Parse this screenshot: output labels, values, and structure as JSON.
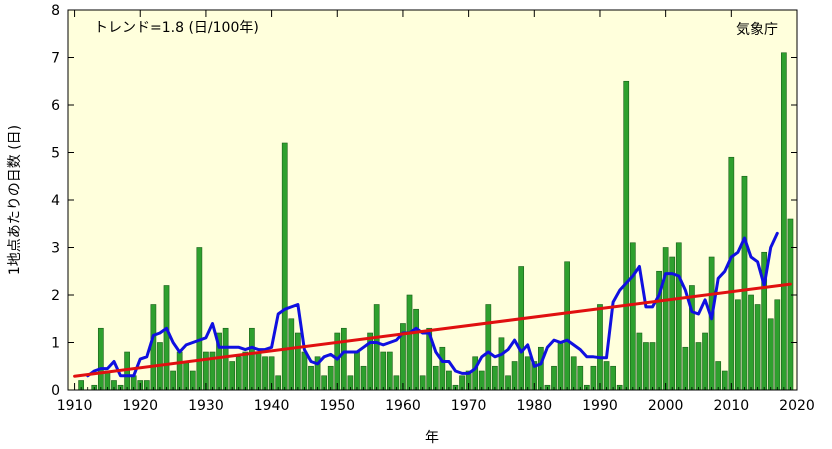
{
  "chart_data": {
    "type": "bar",
    "annotation_trend": "トレンド=1.8 (日/100年)",
    "annotation_source": "気象庁",
    "xlabel": "年",
    "ylabel": "1地点あたりの日数 (日)",
    "xlim": [
      1909,
      2020
    ],
    "ylim": [
      0,
      8
    ],
    "x_ticks": [
      "1910",
      "1920",
      "1930",
      "1940",
      "1950",
      "1960",
      "1970",
      "1980",
      "1990",
      "2000",
      "2010",
      "2020"
    ],
    "y_ticks": [
      "0",
      "1",
      "2",
      "3",
      "4",
      "5",
      "6",
      "7",
      "8"
    ],
    "grid": false,
    "colors": {
      "bar": "#2ea02e",
      "bar_edge": "#1a5e1a",
      "moving_average": "#1010e0",
      "trend": "#e01010",
      "background": "#ffffdc"
    },
    "series": [
      {
        "kind": "bar",
        "x": [
          1910,
          1911,
          1912,
          1913,
          1914,
          1915,
          1916,
          1917,
          1918,
          1919,
          1920,
          1921,
          1922,
          1923,
          1924,
          1925,
          1926,
          1927,
          1928,
          1929,
          1930,
          1931,
          1932,
          1933,
          1934,
          1935,
          1936,
          1937,
          1938,
          1939,
          1940,
          1941,
          1942,
          1943,
          1944,
          1945,
          1946,
          1947,
          1948,
          1949,
          1950,
          1951,
          1952,
          1953,
          1954,
          1955,
          1956,
          1957,
          1958,
          1959,
          1960,
          1961,
          1962,
          1963,
          1964,
          1965,
          1966,
          1967,
          1968,
          1969,
          1970,
          1971,
          1972,
          1973,
          1974,
          1975,
          1976,
          1977,
          1978,
          1979,
          1980,
          1981,
          1982,
          1983,
          1984,
          1985,
          1986,
          1987,
          1988,
          1989,
          1990,
          1991,
          1992,
          1993,
          1994,
          1995,
          1996,
          1997,
          1998,
          1999,
          2000,
          2001,
          2002,
          2003,
          2004,
          2005,
          2006,
          2007,
          2008,
          2009,
          2010,
          2011,
          2012,
          2013,
          2014,
          2015,
          2016,
          2017,
          2018,
          2019
        ],
        "values": [
          0.0,
          0.2,
          0.0,
          0.1,
          1.3,
          0.4,
          0.2,
          0.1,
          0.8,
          0.3,
          0.2,
          0.2,
          1.8,
          1.0,
          2.2,
          0.4,
          0.8,
          0.6,
          0.4,
          3.0,
          0.8,
          0.8,
          1.2,
          1.3,
          0.6,
          0.7,
          0.8,
          1.3,
          0.8,
          0.7,
          0.7,
          0.3,
          5.2,
          1.5,
          1.2,
          0.8,
          0.5,
          0.7,
          0.3,
          0.5,
          1.2,
          1.3,
          0.3,
          0.8,
          0.5,
          1.2,
          1.8,
          0.8,
          0.8,
          0.3,
          1.4,
          2.0,
          1.7,
          0.3,
          1.3,
          0.5,
          0.9,
          0.4,
          0.1,
          0.3,
          0.4,
          0.7,
          0.4,
          1.8,
          0.5,
          1.1,
          0.3,
          0.6,
          2.6,
          0.7,
          0.6,
          0.9,
          0.1,
          0.5,
          1.0,
          2.7,
          0.7,
          0.5,
          0.1,
          0.5,
          1.8,
          0.6,
          0.5,
          0.1,
          6.5,
          3.1,
          1.2,
          1.0,
          1.0,
          2.5,
          3.0,
          2.8,
          3.1,
          0.9,
          2.2,
          1.0,
          1.2,
          2.8,
          0.6,
          0.4,
          4.9,
          1.9,
          4.5,
          2.0,
          1.8,
          2.9,
          1.5,
          1.9,
          7.1,
          3.6
        ]
      },
      {
        "kind": "line",
        "x": [
          1912,
          1913,
          1914,
          1915,
          1916,
          1917,
          1918,
          1919,
          1920,
          1921,
          1922,
          1923,
          1924,
          1925,
          1926,
          1927,
          1928,
          1929,
          1930,
          1931,
          1932,
          1933,
          1934,
          1935,
          1936,
          1937,
          1938,
          1939,
          1940,
          1941,
          1942,
          1943,
          1944,
          1945,
          1946,
          1947,
          1948,
          1949,
          1950,
          1951,
          1952,
          1953,
          1954,
          1955,
          1956,
          1957,
          1958,
          1959,
          1960,
          1961,
          1962,
          1963,
          1964,
          1965,
          1966,
          1967,
          1968,
          1969,
          1970,
          1971,
          1972,
          1973,
          1974,
          1975,
          1976,
          1977,
          1978,
          1979,
          1980,
          1981,
          1982,
          1983,
          1984,
          1985,
          1986,
          1987,
          1988,
          1989,
          1990,
          1991,
          1992,
          1993,
          1994,
          1995,
          1996,
          1997,
          1998,
          1999,
          2000,
          2001,
          2002,
          2003,
          2004,
          2005,
          2006,
          2007,
          2008,
          2009,
          2010,
          2011,
          2012,
          2013,
          2014,
          2015,
          2016,
          2017
        ],
        "values": [
          0.3,
          0.4,
          0.45,
          0.45,
          0.6,
          0.3,
          0.3,
          0.3,
          0.65,
          0.7,
          1.15,
          1.2,
          1.3,
          1.0,
          0.8,
          0.95,
          1.0,
          1.05,
          1.1,
          1.4,
          0.9,
          0.9,
          0.9,
          0.9,
          0.85,
          0.9,
          0.85,
          0.85,
          0.9,
          1.6,
          1.7,
          1.75,
          1.8,
          0.85,
          0.6,
          0.55,
          0.7,
          0.75,
          0.65,
          0.8,
          0.8,
          0.8,
          0.9,
          1.0,
          1.0,
          0.95,
          1.0,
          1.05,
          1.2,
          1.2,
          1.3,
          1.2,
          1.2,
          0.8,
          0.6,
          0.6,
          0.4,
          0.35,
          0.35,
          0.45,
          0.7,
          0.8,
          0.7,
          0.75,
          0.85,
          1.05,
          0.8,
          0.95,
          0.5,
          0.55,
          0.9,
          1.05,
          1.0,
          1.05,
          0.95,
          0.85,
          0.7,
          0.7,
          0.68,
          0.68,
          1.85,
          2.1,
          2.25,
          2.4,
          2.6,
          1.75,
          1.75,
          2.0,
          2.45,
          2.45,
          2.4,
          2.1,
          1.65,
          1.6,
          1.9,
          1.5,
          2.35,
          2.5,
          2.8,
          2.9,
          3.2,
          2.8,
          2.7,
          2.2,
          3.0,
          3.3
        ]
      },
      {
        "kind": "trend",
        "x": [
          1910,
          2019
        ],
        "values": [
          0.29,
          2.23
        ]
      }
    ]
  }
}
